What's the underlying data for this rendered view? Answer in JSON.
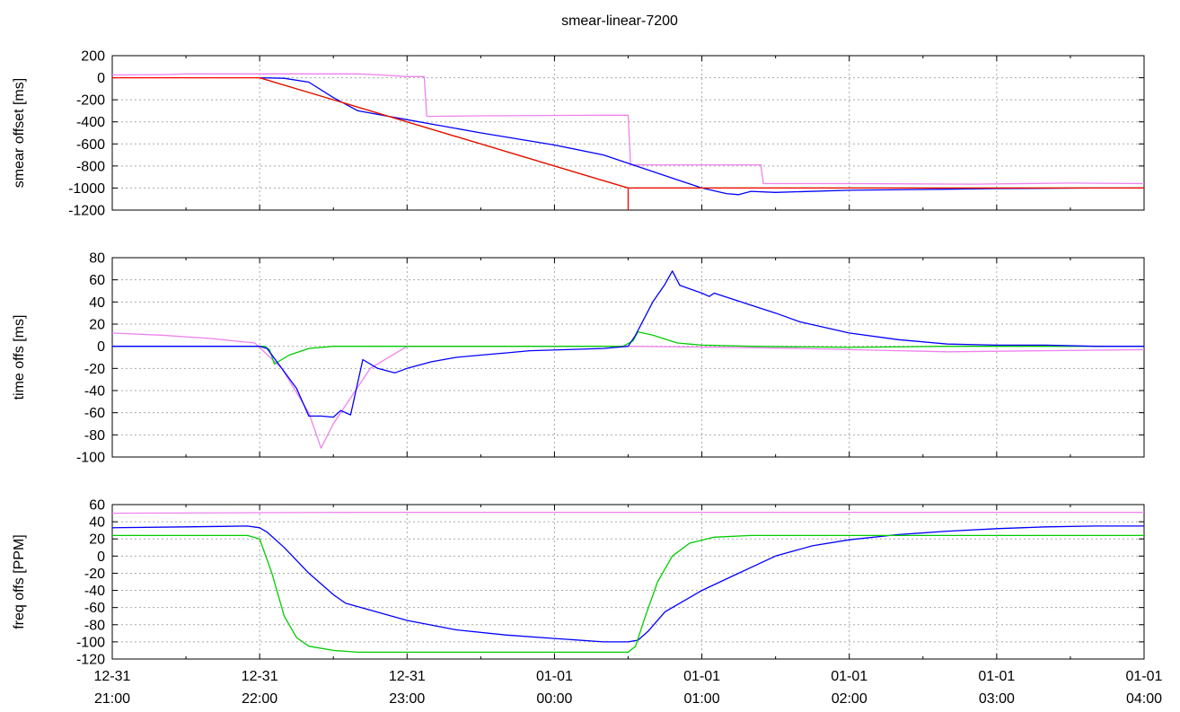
{
  "title": "smear-linear-7200",
  "colors": {
    "magenta": "#ee82ee",
    "blue": "#0000ff",
    "green": "#00cc00",
    "red": "#ff0000"
  },
  "chart_data": [
    {
      "type": "line",
      "id": "smear",
      "ylabel": "smear offset [ms]",
      "xlim": [
        0,
        420
      ],
      "ylim": [
        -1200,
        200
      ],
      "yticks": [
        200,
        0,
        -200,
        -400,
        -600,
        -800,
        -1000,
        -1200
      ],
      "x_unit": "minutes after 12-31 21:00",
      "series": [
        {
          "color": "#ee82ee",
          "points": [
            [
              0,
              25
            ],
            [
              20,
              28
            ],
            [
              30,
              35
            ],
            [
              100,
              35
            ],
            [
              110,
              25
            ],
            [
              120,
              10
            ],
            [
              127,
              10
            ],
            [
              128,
              -350
            ],
            [
              150,
              -345
            ],
            [
              200,
              -340
            ],
            [
              210,
              -340
            ],
            [
              211,
              -790
            ],
            [
              255,
              -790
            ],
            [
              264,
              -790
            ],
            [
              265,
              -960
            ],
            [
              300,
              -960
            ],
            [
              350,
              -965
            ],
            [
              390,
              -955
            ],
            [
              420,
              -960
            ]
          ]
        },
        {
          "color": "#0000ff",
          "points": [
            [
              60,
              0
            ],
            [
              70,
              -5
            ],
            [
              80,
              -40
            ],
            [
              90,
              -180
            ],
            [
              100,
              -300
            ],
            [
              120,
              -380
            ],
            [
              150,
              -500
            ],
            [
              180,
              -610
            ],
            [
              200,
              -700
            ],
            [
              240,
              -1000
            ],
            [
              250,
              -1050
            ],
            [
              255,
              -1060
            ],
            [
              260,
              -1030
            ],
            [
              270,
              -1040
            ],
            [
              300,
              -1020
            ],
            [
              340,
              -1010
            ],
            [
              360,
              -1005
            ],
            [
              400,
              -1000
            ],
            [
              420,
              -1000
            ]
          ]
        },
        {
          "color": "#00cc00",
          "points": [
            [
              60,
              0
            ],
            [
              120,
              -400
            ],
            [
              180,
              -800
            ],
            [
              210,
              -1000
            ],
            [
              225,
              -1000
            ],
            [
              240,
              -1000
            ],
            [
              280,
              -1000
            ],
            [
              350,
              -1000
            ],
            [
              420,
              -1000
            ]
          ]
        },
        {
          "color": "#ff0000",
          "points": [
            [
              0,
              0
            ],
            [
              60,
              0
            ],
            [
              120,
              -400
            ],
            [
              180,
              -800
            ],
            [
              210,
              -1000
            ],
            [
              220,
              -1000
            ],
            [
              230,
              -1000
            ],
            [
              420,
              -1000
            ]
          ]
        },
        {
          "color": "#ff0000",
          "points": [
            [
              210,
              -1000
            ],
            [
              210,
              -1200
            ]
          ]
        }
      ]
    },
    {
      "type": "line",
      "id": "time",
      "ylabel": "time offs [ms]",
      "xlim": [
        0,
        420
      ],
      "ylim": [
        -100,
        80
      ],
      "yticks": [
        80,
        60,
        40,
        20,
        0,
        -20,
        -40,
        -60,
        -80,
        -100
      ],
      "x_unit": "minutes after 12-31 21:00",
      "series": [
        {
          "color": "#ee82ee",
          "points": [
            [
              0,
              12
            ],
            [
              20,
              10
            ],
            [
              40,
              7
            ],
            [
              58,
              3
            ],
            [
              69,
              -20
            ],
            [
              80,
              -60
            ],
            [
              85,
              -92
            ],
            [
              90,
              -70
            ],
            [
              105,
              -20
            ],
            [
              120,
              0
            ],
            [
              150,
              0
            ],
            [
              210,
              0
            ],
            [
              250,
              -1
            ],
            [
              280,
              -2
            ],
            [
              300,
              -3
            ],
            [
              320,
              -4
            ],
            [
              340,
              -5
            ],
            [
              380,
              -4
            ],
            [
              420,
              -3
            ]
          ]
        },
        {
          "color": "#00cc00",
          "points": [
            [
              0,
              0
            ],
            [
              62,
              0
            ],
            [
              64,
              -3
            ],
            [
              66,
              -16
            ],
            [
              72,
              -8
            ],
            [
              80,
              -2
            ],
            [
              90,
              0
            ],
            [
              150,
              0
            ],
            [
              200,
              0
            ],
            [
              208,
              0
            ],
            [
              212,
              5
            ],
            [
              214,
              13
            ],
            [
              220,
              10
            ],
            [
              230,
              3
            ],
            [
              240,
              1
            ],
            [
              260,
              0
            ],
            [
              300,
              -1
            ],
            [
              340,
              0
            ],
            [
              420,
              0
            ]
          ]
        },
        {
          "color": "#0000ff",
          "points": [
            [
              0,
              0
            ],
            [
              60,
              0
            ],
            [
              63,
              -2
            ],
            [
              75,
              -38
            ],
            [
              80,
              -63
            ],
            [
              85,
              -63
            ],
            [
              90,
              -64
            ],
            [
              93,
              -58
            ],
            [
              97,
              -62
            ],
            [
              102,
              -12
            ],
            [
              108,
              -20
            ],
            [
              115,
              -24
            ],
            [
              120,
              -20
            ],
            [
              130,
              -14
            ],
            [
              140,
              -10
            ],
            [
              150,
              -8
            ],
            [
              160,
              -6
            ],
            [
              170,
              -4
            ],
            [
              185,
              -3
            ],
            [
              200,
              -2
            ],
            [
              205,
              -1
            ],
            [
              210,
              0
            ],
            [
              213,
              10
            ],
            [
              220,
              40
            ],
            [
              225,
              56
            ],
            [
              228,
              68
            ],
            [
              231,
              55
            ],
            [
              240,
              48
            ],
            [
              243,
              45
            ],
            [
              245,
              48
            ],
            [
              270,
              30
            ],
            [
              280,
              22
            ],
            [
              300,
              12
            ],
            [
              320,
              6
            ],
            [
              340,
              2
            ],
            [
              360,
              1
            ],
            [
              380,
              1
            ],
            [
              400,
              0
            ],
            [
              420,
              0
            ]
          ]
        }
      ]
    },
    {
      "type": "line",
      "id": "freq",
      "ylabel": "freq offs [PPM]",
      "xlim": [
        0,
        420
      ],
      "ylim": [
        -120,
        60
      ],
      "yticks": [
        60,
        40,
        20,
        0,
        -20,
        -40,
        -60,
        -80,
        -100,
        -120
      ],
      "x_unit": "minutes after 12-31 21:00",
      "series": [
        {
          "color": "#ee82ee",
          "points": [
            [
              0,
              50
            ],
            [
              100,
              51
            ],
            [
              200,
              51
            ],
            [
              300,
              51
            ],
            [
              420,
              51
            ]
          ]
        },
        {
          "color": "#0000ff",
          "points": [
            [
              0,
              33
            ],
            [
              30,
              34
            ],
            [
              55,
              35
            ],
            [
              60,
              33
            ],
            [
              63,
              28
            ],
            [
              70,
              10
            ],
            [
              80,
              -20
            ],
            [
              90,
              -45
            ],
            [
              95,
              -55
            ],
            [
              105,
              -63
            ],
            [
              120,
              -75
            ],
            [
              140,
              -86
            ],
            [
              160,
              -92
            ],
            [
              180,
              -96
            ],
            [
              200,
              -100
            ],
            [
              210,
              -100
            ],
            [
              214,
              -98
            ],
            [
              218,
              -88
            ],
            [
              225,
              -65
            ],
            [
              240,
              -40
            ],
            [
              255,
              -20
            ],
            [
              270,
              0
            ],
            [
              285,
              12
            ],
            [
              300,
              19
            ],
            [
              320,
              25
            ],
            [
              340,
              29
            ],
            [
              360,
              32
            ],
            [
              380,
              34
            ],
            [
              400,
              35
            ],
            [
              420,
              35
            ]
          ]
        },
        {
          "color": "#00cc00",
          "points": [
            [
              0,
              24
            ],
            [
              55,
              24
            ],
            [
              60,
              20
            ],
            [
              65,
              -20
            ],
            [
              70,
              -70
            ],
            [
              75,
              -95
            ],
            [
              80,
              -105
            ],
            [
              90,
              -110
            ],
            [
              100,
              -112
            ],
            [
              150,
              -112
            ],
            [
              210,
              -112
            ],
            [
              213,
              -105
            ],
            [
              217,
              -70
            ],
            [
              222,
              -30
            ],
            [
              228,
              0
            ],
            [
              235,
              15
            ],
            [
              245,
              22
            ],
            [
              260,
              24
            ],
            [
              300,
              24
            ],
            [
              420,
              24
            ]
          ]
        }
      ]
    }
  ],
  "x_axis": {
    "ticks": [
      {
        "min": 0,
        "date": "12-31",
        "time": "21:00"
      },
      {
        "min": 60,
        "date": "12-31",
        "time": "22:00"
      },
      {
        "min": 120,
        "date": "12-31",
        "time": "23:00"
      },
      {
        "min": 180,
        "date": "01-01",
        "time": "00:00"
      },
      {
        "min": 240,
        "date": "01-01",
        "time": "01:00"
      },
      {
        "min": 300,
        "date": "01-01",
        "time": "02:00"
      },
      {
        "min": 360,
        "date": "01-01",
        "time": "03:00"
      },
      {
        "min": 420,
        "date": "01-01",
        "time": "04:00"
      }
    ],
    "minor_step": 30
  }
}
